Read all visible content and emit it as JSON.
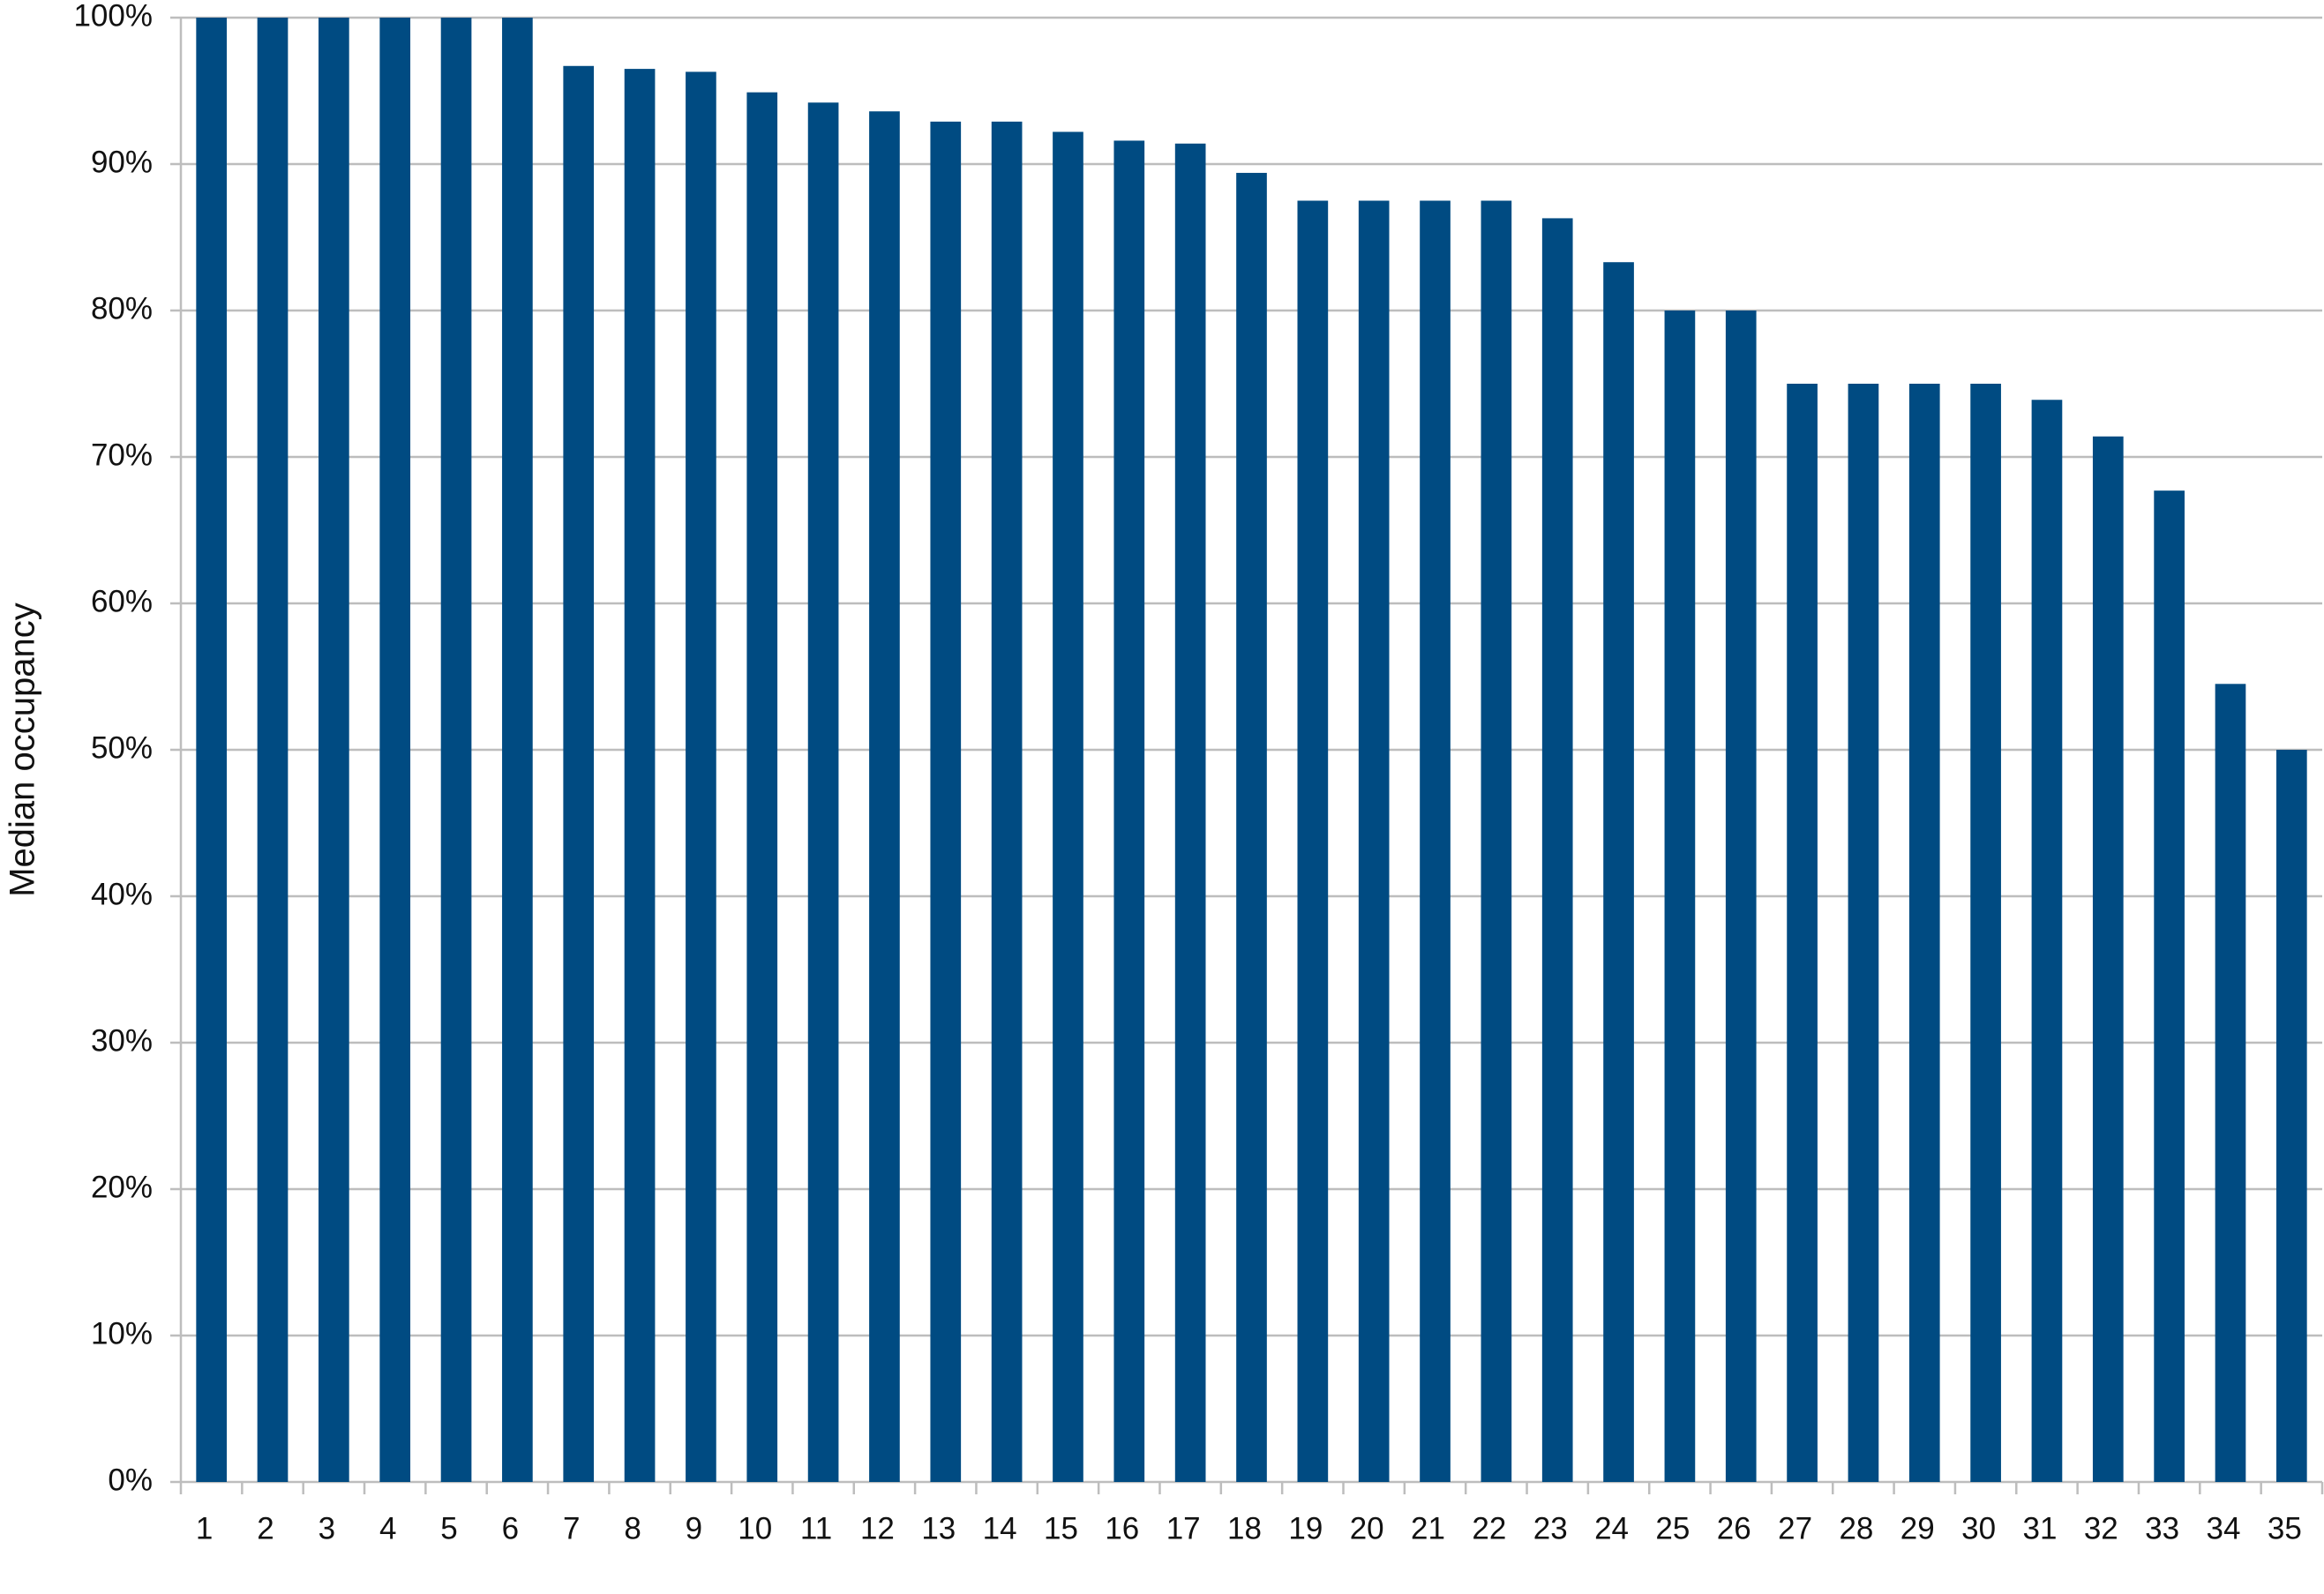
{
  "chart_data": {
    "type": "bar",
    "y_label": "Median occupancy",
    "categories": [
      "1",
      "2",
      "3",
      "4",
      "5",
      "6",
      "7",
      "8",
      "9",
      "10",
      "11",
      "12",
      "13",
      "14",
      "15",
      "16",
      "17",
      "18",
      "19",
      "20",
      "21",
      "22",
      "23",
      "24",
      "25",
      "26",
      "27",
      "28",
      "29",
      "30",
      "31",
      "32",
      "33",
      "34",
      "35"
    ],
    "values": [
      100,
      100,
      100,
      100,
      100,
      100,
      96.7,
      96.5,
      96.3,
      94.9,
      94.2,
      93.6,
      92.9,
      92.9,
      92.2,
      91.6,
      91.4,
      89.4,
      87.5,
      87.5,
      87.5,
      87.5,
      86.3,
      83.3,
      80,
      80,
      75,
      75,
      75,
      75,
      73.9,
      71.4,
      67.7,
      54.5,
      50
    ],
    "color": "#004b82",
    "ylim": [
      0,
      100
    ],
    "yticks": [
      {
        "value": 0,
        "label": "0%"
      },
      {
        "value": 10,
        "label": "10%"
      },
      {
        "value": 20,
        "label": "20%"
      },
      {
        "value": 30,
        "label": "30%"
      },
      {
        "value": 40,
        "label": "40%"
      },
      {
        "value": 50,
        "label": "50%"
      },
      {
        "value": 60,
        "label": "60%"
      },
      {
        "value": 70,
        "label": "70%"
      },
      {
        "value": 80,
        "label": "80%"
      },
      {
        "value": 90,
        "label": "90%"
      },
      {
        "value": 100,
        "label": "100%"
      }
    ],
    "grid": true
  }
}
